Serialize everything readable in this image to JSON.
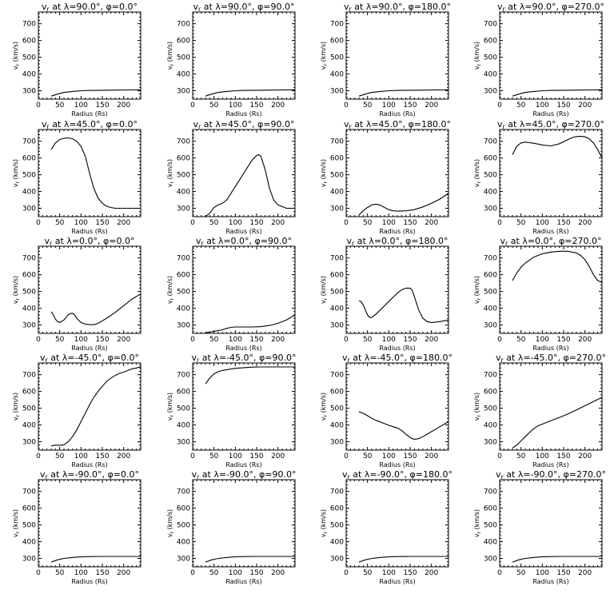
{
  "figure": {
    "xlabel": "Radius (Rs)",
    "ylabel": "v_r (km/s)",
    "xlim": [
      0,
      240
    ],
    "ylim": [
      250,
      770
    ],
    "xticks": [
      0,
      50,
      100,
      150,
      200
    ],
    "yticks": [
      300,
      400,
      500,
      600,
      700
    ],
    "grid": false
  },
  "chart_data": [
    {
      "type": "line",
      "title": "v_r at λ=90.0°, φ=0.0°",
      "xlabel": "Radius (Rs)",
      "ylabel": "v_r (km/s)",
      "xlim": [
        0,
        240
      ],
      "ylim": [
        250,
        770
      ],
      "x": [
        30,
        45,
        60,
        80,
        100,
        120,
        150,
        180,
        210,
        240
      ],
      "values": [
        268,
        280,
        290,
        296,
        300,
        302,
        303,
        304,
        305,
        306
      ]
    },
    {
      "type": "line",
      "title": "v_r at λ=90.0°, φ=90.0°",
      "xlabel": "Radius (Rs)",
      "ylabel": "v_r (km/s)",
      "xlim": [
        0,
        240
      ],
      "ylim": [
        250,
        770
      ],
      "x": [
        30,
        45,
        60,
        80,
        100,
        120,
        150,
        180,
        210,
        240
      ],
      "values": [
        268,
        280,
        290,
        296,
        300,
        302,
        303,
        304,
        305,
        306
      ]
    },
    {
      "type": "line",
      "title": "v_r at λ=90.0°, φ=180.0°",
      "xlabel": "Radius (Rs)",
      "ylabel": "v_r (km/s)",
      "xlim": [
        0,
        240
      ],
      "ylim": [
        250,
        770
      ],
      "x": [
        30,
        45,
        60,
        80,
        100,
        120,
        150,
        180,
        210,
        240
      ],
      "values": [
        268,
        280,
        290,
        296,
        300,
        302,
        303,
        304,
        305,
        306
      ]
    },
    {
      "type": "line",
      "title": "v_r at λ=90.0°, φ=270.0°",
      "xlabel": "Radius (Rs)",
      "ylabel": "v_r (km/s)",
      "xlim": [
        0,
        240
      ],
      "ylim": [
        250,
        770
      ],
      "x": [
        30,
        45,
        60,
        80,
        100,
        120,
        150,
        180,
        210,
        240
      ],
      "values": [
        268,
        280,
        290,
        296,
        300,
        302,
        303,
        304,
        305,
        306
      ]
    },
    {
      "type": "line",
      "title": "v_r at λ=45.0°, φ=0.0°",
      "xlabel": "Radius (Rs)",
      "ylabel": "v_r (km/s)",
      "xlim": [
        0,
        240
      ],
      "ylim": [
        250,
        770
      ],
      "x": [
        30,
        40,
        50,
        60,
        70,
        80,
        90,
        100,
        110,
        120,
        130,
        140,
        150,
        160,
        170,
        180,
        200,
        220,
        240
      ],
      "values": [
        650,
        690,
        710,
        718,
        720,
        715,
        700,
        670,
        610,
        510,
        420,
        360,
        330,
        312,
        305,
        300,
        300,
        300,
        300
      ]
    },
    {
      "type": "line",
      "title": "v_r at λ=45.0°, φ=90.0°",
      "xlabel": "Radius (Rs)",
      "ylabel": "v_r (km/s)",
      "xlim": [
        0,
        240
      ],
      "ylim": [
        250,
        770
      ],
      "x": [
        30,
        40,
        50,
        60,
        70,
        80,
        90,
        100,
        110,
        120,
        130,
        140,
        150,
        155,
        160,
        170,
        180,
        190,
        200,
        220,
        240
      ],
      "values": [
        250,
        270,
        305,
        320,
        330,
        350,
        390,
        430,
        470,
        510,
        550,
        590,
        615,
        620,
        610,
        530,
        420,
        350,
        320,
        300,
        300
      ]
    },
    {
      "type": "line",
      "title": "v_r at λ=45.0°, φ=180.0°",
      "xlabel": "Radius (Rs)",
      "ylabel": "v_r (km/s)",
      "xlim": [
        0,
        240
      ],
      "ylim": [
        250,
        770
      ],
      "x": [
        30,
        40,
        50,
        60,
        70,
        80,
        90,
        100,
        110,
        120,
        140,
        160,
        180,
        200,
        220,
        240
      ],
      "values": [
        260,
        285,
        305,
        320,
        325,
        318,
        305,
        292,
        285,
        283,
        285,
        292,
        308,
        330,
        355,
        390
      ]
    },
    {
      "type": "line",
      "title": "v_r at λ=45.0°, φ=270.0°",
      "xlabel": "Radius (Rs)",
      "ylabel": "v_r (km/s)",
      "xlim": [
        0,
        240
      ],
      "ylim": [
        250,
        770
      ],
      "x": [
        30,
        40,
        50,
        60,
        80,
        100,
        120,
        140,
        160,
        170,
        180,
        190,
        200,
        210,
        220,
        230,
        240
      ],
      "values": [
        620,
        670,
        690,
        695,
        688,
        678,
        672,
        685,
        710,
        722,
        728,
        730,
        726,
        715,
        690,
        650,
        600
      ]
    },
    {
      "type": "line",
      "title": "v_r at λ=0.0°, φ=0.0°",
      "xlabel": "Radius (Rs)",
      "ylabel": "v_r (km/s)",
      "xlim": [
        0,
        240
      ],
      "ylim": [
        250,
        770
      ],
      "x": [
        30,
        35,
        40,
        45,
        50,
        60,
        70,
        75,
        80,
        85,
        90,
        100,
        110,
        120,
        130,
        140,
        160,
        180,
        200,
        220,
        240
      ],
      "values": [
        380,
        360,
        335,
        320,
        315,
        330,
        360,
        368,
        370,
        360,
        340,
        315,
        305,
        302,
        302,
        310,
        340,
        375,
        415,
        455,
        485
      ]
    },
    {
      "type": "line",
      "title": "v_r at λ=0.0°, φ=90.0°",
      "xlabel": "Radius (Rs)",
      "ylabel": "v_r (km/s)",
      "xlim": [
        0,
        240
      ],
      "ylim": [
        250,
        770
      ],
      "x": [
        30,
        40,
        50,
        60,
        70,
        80,
        90,
        100,
        120,
        140,
        160,
        180,
        200,
        220,
        240
      ],
      "values": [
        255,
        258,
        262,
        266,
        272,
        280,
        286,
        288,
        288,
        288,
        290,
        297,
        310,
        330,
        360
      ]
    },
    {
      "type": "line",
      "title": "v_r at λ=0.0°, φ=180.0°",
      "xlabel": "Radius (Rs)",
      "ylabel": "v_r (km/s)",
      "xlim": [
        0,
        240
      ],
      "ylim": [
        250,
        770
      ],
      "x": [
        30,
        35,
        40,
        45,
        50,
        55,
        60,
        70,
        80,
        90,
        100,
        110,
        120,
        130,
        140,
        150,
        155,
        160,
        170,
        180,
        190,
        200,
        220,
        240
      ],
      "values": [
        445,
        440,
        420,
        390,
        360,
        345,
        345,
        365,
        390,
        415,
        440,
        465,
        490,
        510,
        520,
        520,
        505,
        470,
        390,
        340,
        320,
        315,
        320,
        330
      ]
    },
    {
      "type": "line",
      "title": "v_r at λ=0.0°, φ=270.0°",
      "xlabel": "Radius (Rs)",
      "ylabel": "v_r (km/s)",
      "xlim": [
        0,
        240
      ],
      "ylim": [
        250,
        770
      ],
      "x": [
        30,
        40,
        50,
        60,
        80,
        100,
        120,
        140,
        160,
        180,
        190,
        200,
        210,
        220,
        230,
        240
      ],
      "values": [
        565,
        610,
        645,
        670,
        705,
        725,
        735,
        740,
        740,
        730,
        715,
        690,
        650,
        600,
        565,
        555
      ]
    },
    {
      "type": "line",
      "title": "v_r at λ=-45.0°, φ=0.0°",
      "xlabel": "Radius (Rs)",
      "ylabel": "v_r (km/s)",
      "xlim": [
        0,
        240
      ],
      "ylim": [
        250,
        770
      ],
      "x": [
        30,
        40,
        50,
        60,
        70,
        80,
        90,
        100,
        110,
        120,
        130,
        140,
        150,
        160,
        170,
        180,
        190,
        200,
        210,
        220,
        230,
        240
      ],
      "values": [
        275,
        280,
        278,
        282,
        300,
        330,
        370,
        420,
        470,
        520,
        565,
        600,
        630,
        660,
        680,
        695,
        708,
        715,
        725,
        735,
        740,
        748
      ]
    },
    {
      "type": "line",
      "title": "v_r at λ=-45.0°, φ=90.0°",
      "xlabel": "Radius (Rs)",
      "ylabel": "v_r (km/s)",
      "xlim": [
        0,
        240
      ],
      "ylim": [
        250,
        770
      ],
      "x": [
        30,
        40,
        50,
        60,
        70,
        80,
        100,
        120,
        140,
        160,
        180,
        200,
        220,
        240
      ],
      "values": [
        645,
        680,
        705,
        718,
        725,
        730,
        738,
        742,
        745,
        746,
        746,
        746,
        746,
        746
      ]
    },
    {
      "type": "line",
      "title": "v_r at λ=-45.0°, φ=180.0°",
      "xlabel": "Radius (Rs)",
      "ylabel": "v_r (km/s)",
      "xlim": [
        0,
        240
      ],
      "ylim": [
        250,
        770
      ],
      "x": [
        30,
        40,
        50,
        60,
        70,
        80,
        90,
        100,
        110,
        120,
        130,
        140,
        150,
        155,
        160,
        170,
        180,
        190,
        200,
        210,
        220,
        230,
        240
      ],
      "values": [
        478,
        470,
        455,
        440,
        428,
        418,
        408,
        398,
        390,
        382,
        368,
        345,
        325,
        318,
        315,
        318,
        330,
        345,
        360,
        375,
        390,
        405,
        420
      ]
    },
    {
      "type": "line",
      "title": "v_r at λ=-45.0°, φ=270.0°",
      "xlabel": "Radius (Rs)",
      "ylabel": "v_r (km/s)",
      "xlim": [
        0,
        240
      ],
      "ylim": [
        250,
        770
      ],
      "x": [
        30,
        40,
        50,
        60,
        70,
        80,
        90,
        100,
        120,
        140,
        160,
        180,
        200,
        220,
        240
      ],
      "values": [
        262,
        280,
        305,
        330,
        355,
        378,
        395,
        405,
        425,
        445,
        465,
        490,
        515,
        540,
        565
      ]
    },
    {
      "type": "line",
      "title": "v_r at λ=-90.0°, φ=0.0°",
      "xlabel": "Radius (Rs)",
      "ylabel": "v_r (km/s)",
      "xlim": [
        0,
        240
      ],
      "ylim": [
        250,
        770
      ],
      "x": [
        30,
        45,
        60,
        80,
        100,
        120,
        150,
        180,
        210,
        240
      ],
      "values": [
        278,
        292,
        300,
        306,
        310,
        311,
        312,
        312,
        312,
        312
      ]
    },
    {
      "type": "line",
      "title": "v_r at λ=-90.0°, φ=90.0°",
      "xlabel": "Radius (Rs)",
      "ylabel": "v_r (km/s)",
      "xlim": [
        0,
        240
      ],
      "ylim": [
        250,
        770
      ],
      "x": [
        30,
        45,
        60,
        80,
        100,
        120,
        150,
        180,
        210,
        240
      ],
      "values": [
        278,
        292,
        300,
        306,
        310,
        311,
        312,
        312,
        312,
        312
      ]
    },
    {
      "type": "line",
      "title": "v_r at λ=-90.0°, φ=180.0°",
      "xlabel": "Radius (Rs)",
      "ylabel": "v_r (km/s)",
      "xlim": [
        0,
        240
      ],
      "ylim": [
        250,
        770
      ],
      "x": [
        30,
        45,
        60,
        80,
        100,
        120,
        150,
        180,
        210,
        240
      ],
      "values": [
        278,
        292,
        300,
        306,
        310,
        311,
        312,
        312,
        312,
        312
      ]
    },
    {
      "type": "line",
      "title": "v_r at λ=-90.0°, φ=270.0°",
      "xlabel": "Radius (Rs)",
      "ylabel": "v_r (km/s)",
      "xlim": [
        0,
        240
      ],
      "ylim": [
        250,
        770
      ],
      "x": [
        30,
        45,
        60,
        80,
        100,
        120,
        150,
        180,
        210,
        240
      ],
      "values": [
        278,
        292,
        300,
        306,
        310,
        311,
        312,
        312,
        312,
        312
      ]
    }
  ]
}
